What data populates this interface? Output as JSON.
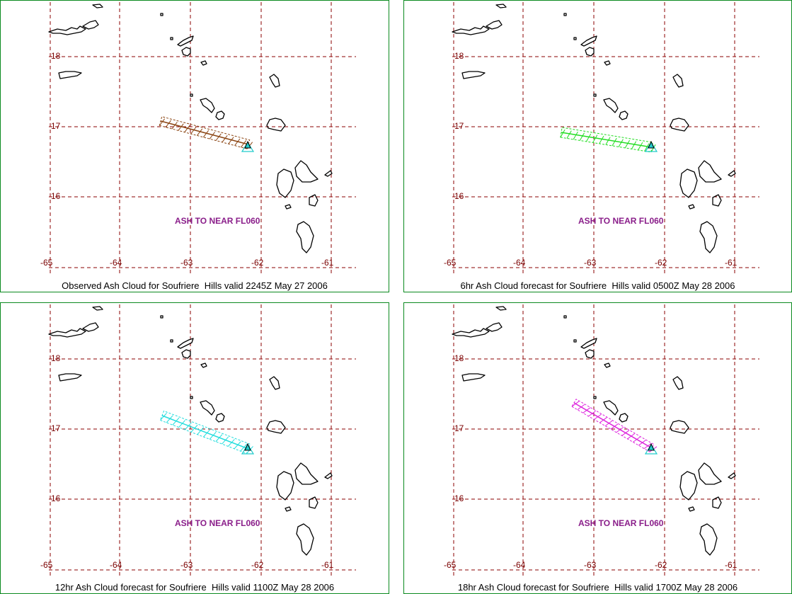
{
  "panels": [
    {
      "caption": "Observed Ash Cloud for Soufriere  Hills valid 2245Z May 27 2006",
      "annotation": "ASH TO NEAR FL060",
      "cloud_color": "#8b4513"
    },
    {
      "caption": "6hr Ash Cloud forecast for Soufriere  Hills valid 0500Z May 28 2006",
      "annotation": "ASH TO NEAR FL060",
      "cloud_color": "#22dd22"
    },
    {
      "caption": "12hr Ash Cloud forecast for Soufriere  Hills valid 1100Z May 28 2006",
      "annotation": "ASH TO NEAR FL060",
      "cloud_color": "#22dddd"
    },
    {
      "caption": "18hr Ash Cloud forecast for Soufriere  Hills valid 1700Z May 28 2006",
      "annotation": "ASH TO NEAR FL060",
      "cloud_color": "#dd22dd"
    }
  ],
  "map": {
    "latitude_labels": [
      "18",
      "17",
      "16"
    ],
    "longitude_labels": [
      "-65",
      "-64",
      "-63",
      "-62",
      "-61"
    ],
    "grid_color": "#8b0000",
    "coast_color": "#000000",
    "volcano_icon": "volcano-marker-icon",
    "volcano_color": "#22cccc"
  }
}
